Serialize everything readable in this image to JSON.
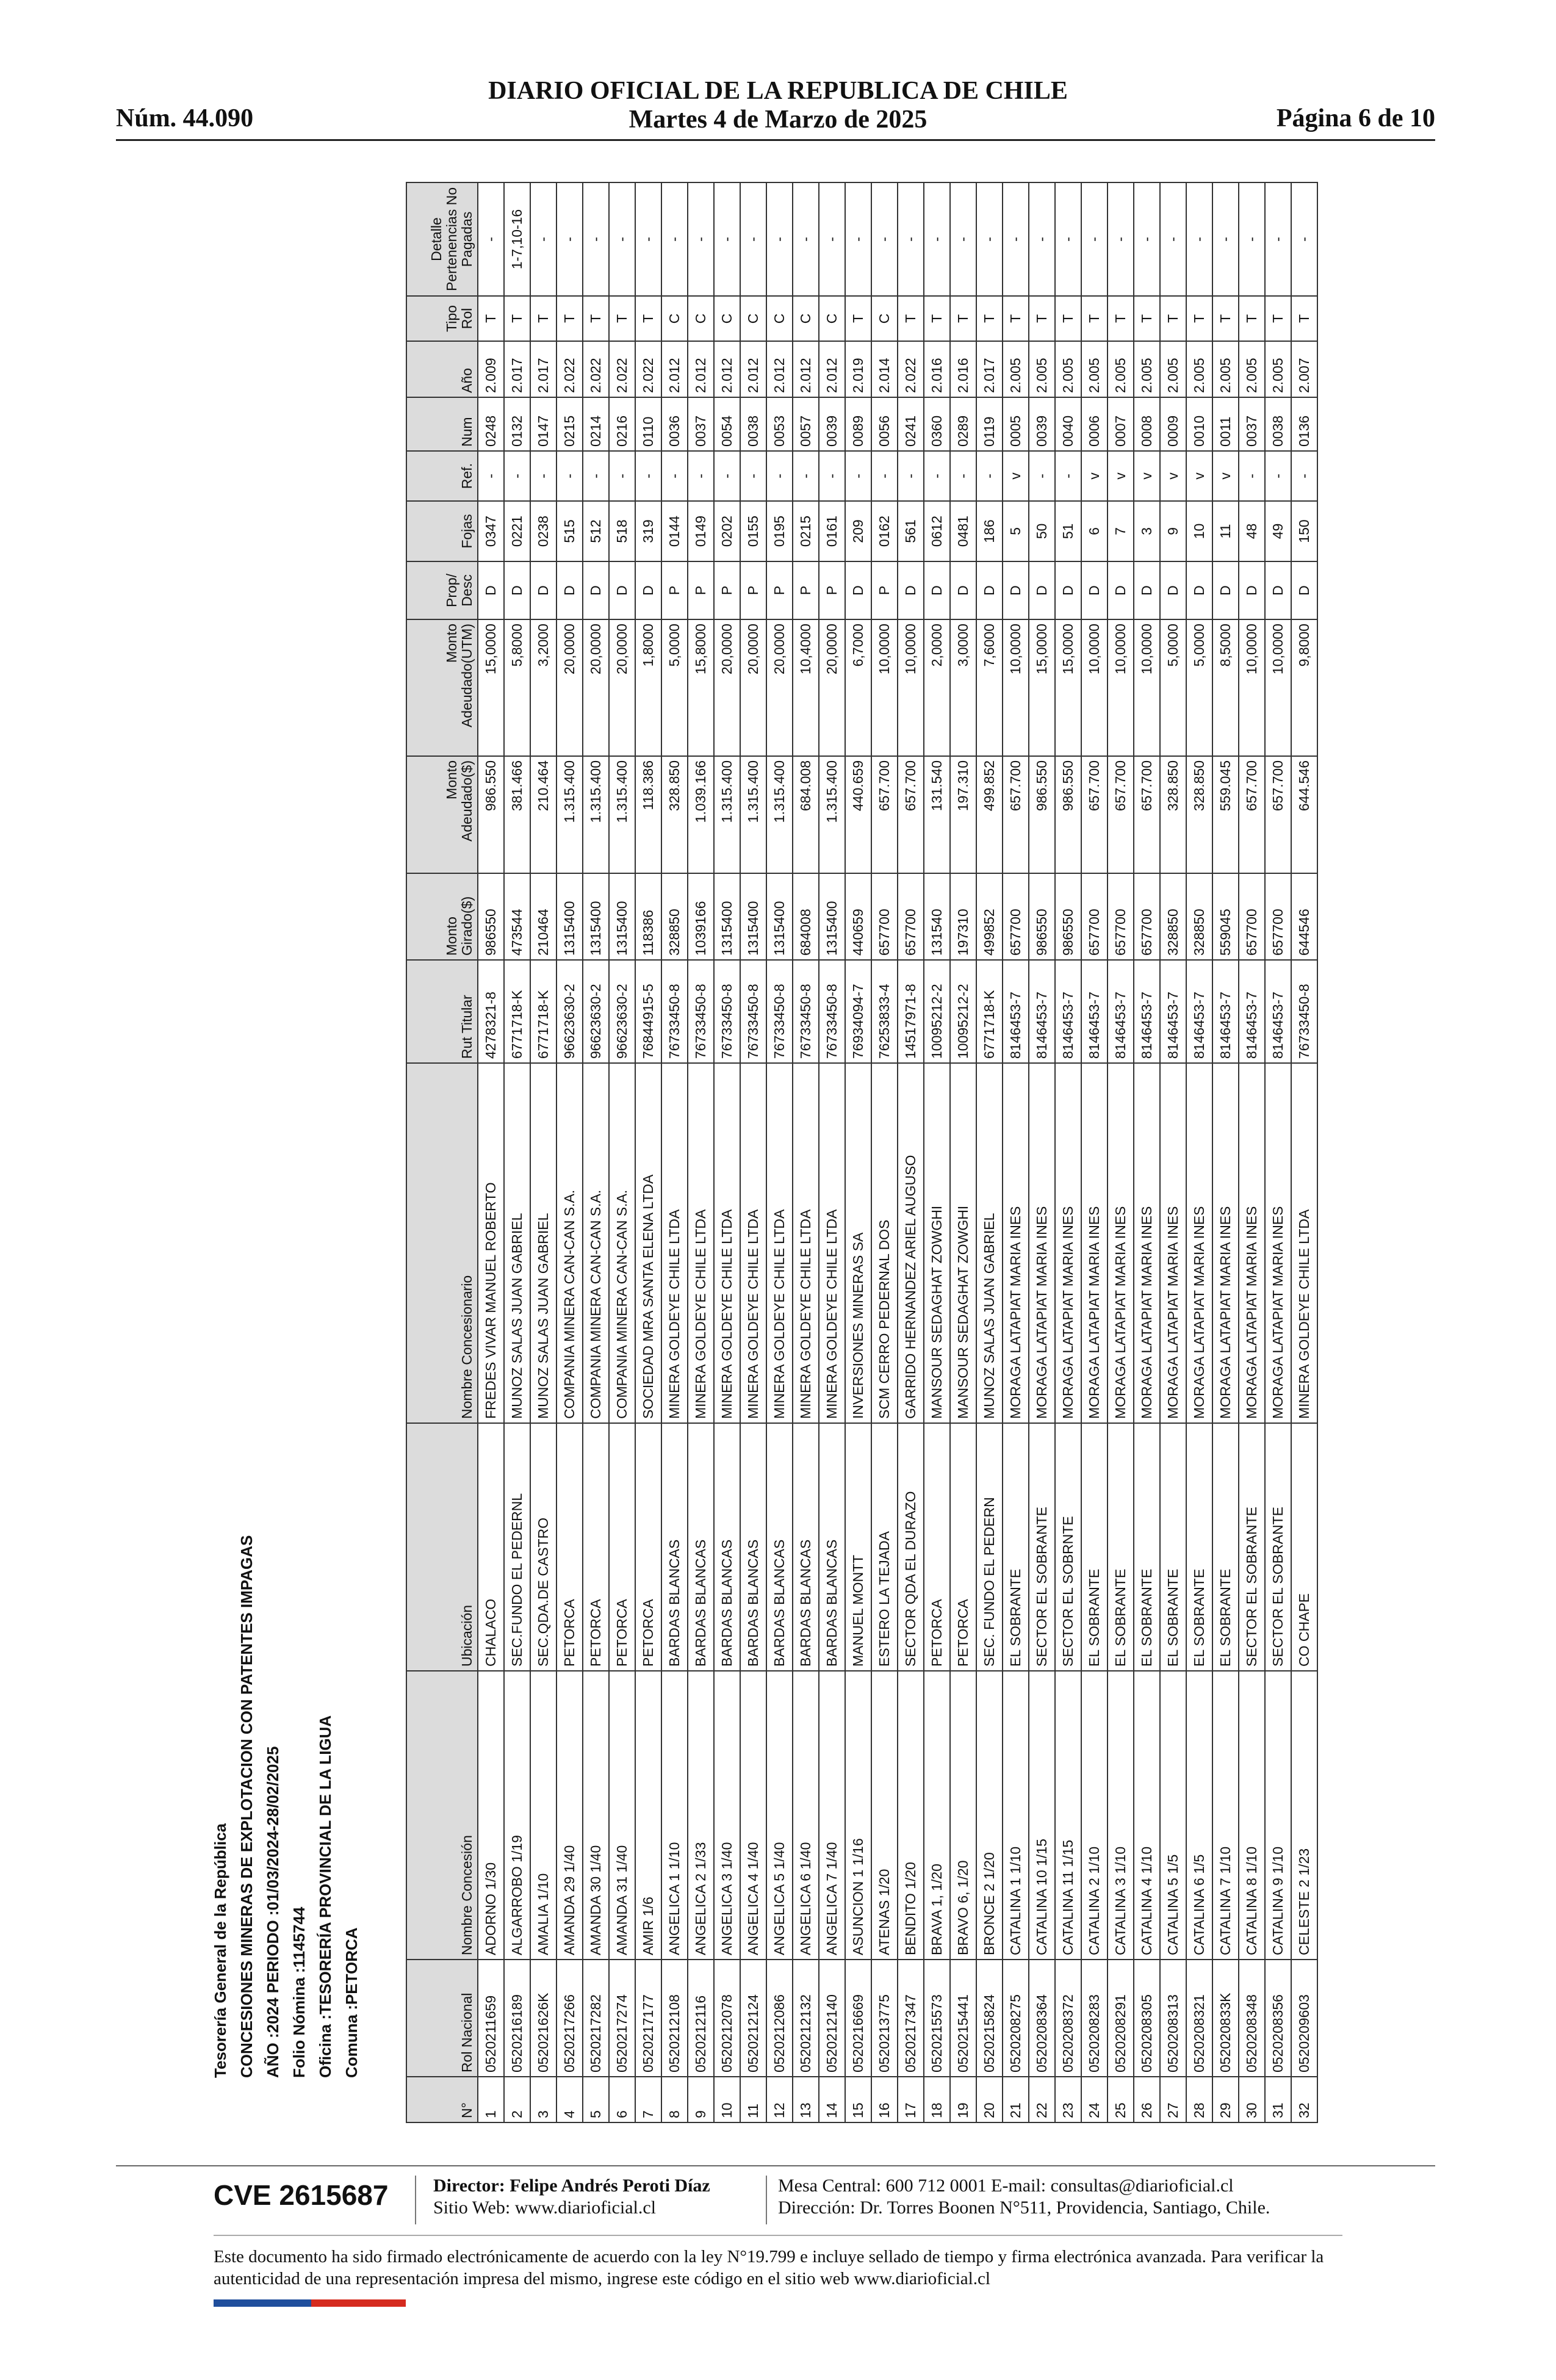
{
  "header": {
    "number": "Núm. 44.090",
    "title": "DIARIO OFICIAL DE LA REPUBLICA DE CHILE",
    "date": "Martes 4 de Marzo de 2025",
    "page": "Página 6 de 10"
  },
  "titles": [
    "Tesorería General de la República",
    "CONCESIONES MINERAS DE EXPLOTACION CON PATENTES IMPAGAS",
    "AÑO :2024 PERIODO :01/03/2024-28/02/2025",
    "Folio Nómina :1145744",
    "Oficina :TESORERÍA PROVINCIAL DE LA LIGUA",
    "Comuna :PETORCA"
  ],
  "table": {
    "columns": [
      "N°",
      "Rol Nacional",
      "Nombre Concesión",
      "Ubicación",
      "Nombre Concesionario",
      "Rut Titular",
      "Monto Girado($)",
      "Monto Adeudado($)",
      "Monto Adeudado(UTM)",
      "Prop/ Desc",
      "Fojas",
      "Ref.",
      "Num",
      "Año",
      "Tipo Rol",
      "Detalle Pertenencias No Pagadas"
    ],
    "rows": [
      [
        "1",
        "0520211659",
        "ADORNO 1/30",
        "CHALACO",
        "FREDES VIVAR MANUEL ROBERTO",
        "4278321-8",
        "986550",
        "986.550",
        "15,0000",
        "D",
        "0347",
        "-",
        "0248",
        "2.009",
        "T",
        "-"
      ],
      [
        "2",
        "0520216189",
        "ALGARROBO 1/19",
        "SEC.FUNDO EL PEDERNL",
        "MUNOZ SALAS JUAN GABRIEL",
        "6771718-K",
        "473544",
        "381.466",
        "5,8000",
        "D",
        "0221",
        "-",
        "0132",
        "2.017",
        "T",
        "1-7,10-16"
      ],
      [
        "3",
        "052021626K",
        "AMALIA 1/10",
        "SEC.QDA.DE CASTRO",
        "MUNOZ SALAS JUAN GABRIEL",
        "6771718-K",
        "210464",
        "210.464",
        "3,2000",
        "D",
        "0238",
        "-",
        "0147",
        "2.017",
        "T",
        "-"
      ],
      [
        "4",
        "0520217266",
        "AMANDA 29 1/40",
        "PETORCA",
        "COMPANIA MINERA CAN-CAN S.A.",
        "96623630-2",
        "1315400",
        "1.315.400",
        "20,0000",
        "D",
        "515",
        "-",
        "0215",
        "2.022",
        "T",
        "-"
      ],
      [
        "5",
        "0520217282",
        "AMANDA 30 1/40",
        "PETORCA",
        "COMPANIA MINERA CAN-CAN S.A.",
        "96623630-2",
        "1315400",
        "1.315.400",
        "20,0000",
        "D",
        "512",
        "-",
        "0214",
        "2.022",
        "T",
        "-"
      ],
      [
        "6",
        "0520217274",
        "AMANDA 31 1/40",
        "PETORCA",
        "COMPANIA MINERA CAN-CAN S.A.",
        "96623630-2",
        "1315400",
        "1.315.400",
        "20,0000",
        "D",
        "518",
        "-",
        "0216",
        "2.022",
        "T",
        "-"
      ],
      [
        "7",
        "0520217177",
        "AMIR 1/6",
        "PETORCA",
        "SOCIEDAD MRA SANTA ELENA LTDA",
        "76844915-5",
        "118386",
        "118.386",
        "1,8000",
        "D",
        "319",
        "-",
        "0110",
        "2.022",
        "T",
        "-"
      ],
      [
        "8",
        "0520212108",
        "ANGELICA 1 1/10",
        "BARDAS BLANCAS",
        "MINERA GOLDEYE CHILE LTDA",
        "76733450-8",
        "328850",
        "328.850",
        "5,0000",
        "P",
        "0144",
        "-",
        "0036",
        "2.012",
        "C",
        "-"
      ],
      [
        "9",
        "0520212116",
        "ANGELICA 2 1/33",
        "BARDAS BLANCAS",
        "MINERA GOLDEYE CHILE LTDA",
        "76733450-8",
        "1039166",
        "1.039.166",
        "15,8000",
        "P",
        "0149",
        "-",
        "0037",
        "2.012",
        "C",
        "-"
      ],
      [
        "10",
        "0520212078",
        "ANGELICA 3 1/40",
        "BARDAS BLANCAS",
        "MINERA GOLDEYE CHILE LTDA",
        "76733450-8",
        "1315400",
        "1.315.400",
        "20,0000",
        "P",
        "0202",
        "-",
        "0054",
        "2.012",
        "C",
        "-"
      ],
      [
        "11",
        "0520212124",
        "ANGELICA 4 1/40",
        "BARDAS BLANCAS",
        "MINERA GOLDEYE CHILE LTDA",
        "76733450-8",
        "1315400",
        "1.315.400",
        "20,0000",
        "P",
        "0155",
        "-",
        "0038",
        "2.012",
        "C",
        "-"
      ],
      [
        "12",
        "0520212086",
        "ANGELICA 5 1/40",
        "BARDAS BLANCAS",
        "MINERA GOLDEYE CHILE LTDA",
        "76733450-8",
        "1315400",
        "1.315.400",
        "20,0000",
        "P",
        "0195",
        "-",
        "0053",
        "2.012",
        "C",
        "-"
      ],
      [
        "13",
        "0520212132",
        "ANGELICA 6 1/40",
        "BARDAS BLANCAS",
        "MINERA GOLDEYE CHILE LTDA",
        "76733450-8",
        "684008",
        "684.008",
        "10,4000",
        "P",
        "0215",
        "-",
        "0057",
        "2.012",
        "C",
        "-"
      ],
      [
        "14",
        "0520212140",
        "ANGELICA 7 1/40",
        "BARDAS BLANCAS",
        "MINERA GOLDEYE CHILE LTDA",
        "76733450-8",
        "1315400",
        "1.315.400",
        "20,0000",
        "P",
        "0161",
        "-",
        "0039",
        "2.012",
        "C",
        "-"
      ],
      [
        "15",
        "0520216669",
        "ASUNCION 1 1/16",
        "MANUEL MONTT",
        "INVERSIONES MINERAS SA",
        "76934094-7",
        "440659",
        "440.659",
        "6,7000",
        "D",
        "209",
        "-",
        "0089",
        "2.019",
        "T",
        "-"
      ],
      [
        "16",
        "0520213775",
        "ATENAS 1/20",
        "ESTERO LA TEJADA",
        "SCM CERRO PEDERNAL DOS",
        "76253833-4",
        "657700",
        "657.700",
        "10,0000",
        "P",
        "0162",
        "-",
        "0056",
        "2.014",
        "C",
        "-"
      ],
      [
        "17",
        "0520217347",
        "BENDITO 1/20",
        "SECTOR QDA EL DURAZO",
        "GARRIDO HERNANDEZ ARIEL AUGUSO",
        "14517971-8",
        "657700",
        "657.700",
        "10,0000",
        "D",
        "561",
        "-",
        "0241",
        "2.022",
        "T",
        "-"
      ],
      [
        "18",
        "0520215573",
        "BRAVA 1, 1/20",
        "PETORCA",
        "MANSOUR SEDAGHAT ZOWGHI",
        "10095212-2",
        "131540",
        "131.540",
        "2,0000",
        "D",
        "0612",
        "-",
        "0360",
        "2.016",
        "T",
        "-"
      ],
      [
        "19",
        "0520215441",
        "BRAVO 6, 1/20",
        "PETORCA",
        "MANSOUR SEDAGHAT ZOWGHI",
        "10095212-2",
        "197310",
        "197.310",
        "3,0000",
        "D",
        "0481",
        "-",
        "0289",
        "2.016",
        "T",
        "-"
      ],
      [
        "20",
        "0520215824",
        "BRONCE 2 1/20",
        "SEC. FUNDO EL PEDERN",
        "MUNOZ SALAS JUAN GABRIEL",
        "6771718-K",
        "499852",
        "499.852",
        "7,6000",
        "D",
        "186",
        "-",
        "0119",
        "2.017",
        "T",
        "-"
      ],
      [
        "21",
        "0520208275",
        "CATALINA 1 1/10",
        "EL SOBRANTE",
        "MORAGA LATAPIAT MARIA INES",
        "8146453-7",
        "657700",
        "657.700",
        "10,0000",
        "D",
        "5",
        "v",
        "0005",
        "2.005",
        "T",
        "-"
      ],
      [
        "22",
        "0520208364",
        "CATALINA 10 1/15",
        "SECTOR EL SOBRANTE",
        "MORAGA LATAPIAT MARIA INES",
        "8146453-7",
        "986550",
        "986.550",
        "15,0000",
        "D",
        "50",
        "-",
        "0039",
        "2.005",
        "T",
        "-"
      ],
      [
        "23",
        "0520208372",
        "CATALINA 11 1/15",
        "SECTOR EL SOBRNTE",
        "MORAGA LATAPIAT MARIA INES",
        "8146453-7",
        "986550",
        "986.550",
        "15,0000",
        "D",
        "51",
        "-",
        "0040",
        "2.005",
        "T",
        "-"
      ],
      [
        "24",
        "0520208283",
        "CATALINA 2 1/10",
        "EL SOBRANTE",
        "MORAGA LATAPIAT MARIA INES",
        "8146453-7",
        "657700",
        "657.700",
        "10,0000",
        "D",
        "6",
        "v",
        "0006",
        "2.005",
        "T",
        "-"
      ],
      [
        "25",
        "0520208291",
        "CATALINA 3 1/10",
        "EL SOBRANTE",
        "MORAGA LATAPIAT MARIA INES",
        "8146453-7",
        "657700",
        "657.700",
        "10,0000",
        "D",
        "7",
        "v",
        "0007",
        "2.005",
        "T",
        "-"
      ],
      [
        "26",
        "0520208305",
        "CATALINA 4 1/10",
        "EL SOBRANTE",
        "MORAGA LATAPIAT MARIA INES",
        "8146453-7",
        "657700",
        "657.700",
        "10,0000",
        "D",
        "3",
        "v",
        "0008",
        "2.005",
        "T",
        "-"
      ],
      [
        "27",
        "0520208313",
        "CATALINA 5 1/5",
        "EL SOBRANTE",
        "MORAGA LATAPIAT MARIA INES",
        "8146453-7",
        "328850",
        "328.850",
        "5,0000",
        "D",
        "9",
        "v",
        "0009",
        "2.005",
        "T",
        "-"
      ],
      [
        "28",
        "0520208321",
        "CATALINA 6 1/5",
        "EL SOBRANTE",
        "MORAGA LATAPIAT MARIA INES",
        "8146453-7",
        "328850",
        "328.850",
        "5,0000",
        "D",
        "10",
        "v",
        "0010",
        "2.005",
        "T",
        "-"
      ],
      [
        "29",
        "052020833K",
        "CATALINA 7 1/10",
        "EL SOBRANTE",
        "MORAGA LATAPIAT MARIA INES",
        "8146453-7",
        "559045",
        "559.045",
        "8,5000",
        "D",
        "11",
        "v",
        "0011",
        "2.005",
        "T",
        "-"
      ],
      [
        "30",
        "0520208348",
        "CATALINA 8 1/10",
        "SECTOR EL SOBRANTE",
        "MORAGA LATAPIAT MARIA INES",
        "8146453-7",
        "657700",
        "657.700",
        "10,0000",
        "D",
        "48",
        "-",
        "0037",
        "2.005",
        "T",
        "-"
      ],
      [
        "31",
        "0520208356",
        "CATALINA 9 1/10",
        "SECTOR EL SOBRANTE",
        "MORAGA LATAPIAT MARIA INES",
        "8146453-7",
        "657700",
        "657.700",
        "10,0000",
        "D",
        "49",
        "-",
        "0038",
        "2.005",
        "T",
        "-"
      ],
      [
        "32",
        "0520209603",
        "CELESTE 2 1/23",
        "CO CHAPE",
        "MINERA GOLDEYE CHILE LTDA",
        "76733450-8",
        "644546",
        "644.546",
        "9,8000",
        "D",
        "150",
        "-",
        "0136",
        "2.007",
        "T",
        "-"
      ]
    ]
  },
  "footer": {
    "cve": "CVE 2615687",
    "director": "Director: Felipe Andrés Peroti Díaz",
    "website": "Sitio Web: www.diarioficial.cl",
    "contact": "Mesa Central: 600 712 0001   E-mail: consultas@diarioficial.cl",
    "address": "Dirección: Dr. Torres Boonen N°511, Providencia, Santiago, Chile.",
    "notice": "Este documento ha sido firmado electrónicamente de acuerdo con la ley N°19.799 e incluye sellado de tiempo y firma electrónica avanzada. Para verificar la autenticidad de una representación impresa del mismo, ingrese este código en el sitio web www.diarioficial.cl",
    "flag_colors": [
      "#1f4e9c",
      "#d52b1e"
    ]
  }
}
